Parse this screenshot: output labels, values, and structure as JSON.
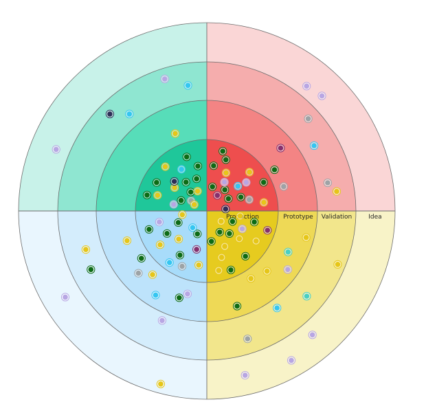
{
  "rings": [
    {
      "label": "Production"
    },
    {
      "label": "Prototype"
    },
    {
      "label": "Validation"
    },
    {
      "label": "Idea"
    }
  ],
  "quadrant_colors": {
    "top_left": [
      "#1fc79a",
      "#57ddb9",
      "#8fe6d1",
      "#c8f2e9"
    ],
    "top_right": [
      "#ee4e4e",
      "#f38484",
      "#f5adad",
      "#fad6d6"
    ],
    "bottom_left": [
      "#a8dcfa",
      "#bde3fb",
      "#d4edfc",
      "#e9f6fe"
    ],
    "bottom_right": [
      "#e6cb1f",
      "#eed956",
      "#f2e68c",
      "#f8f3c8"
    ]
  },
  "blip_colors": {
    "green": "#0d6b15",
    "yellow": "#e6c619",
    "cyan": "#35c6f1",
    "lavender": "#b8a6e3",
    "gray": "#9da3a6",
    "navy": "#2e2e57",
    "plum": "#85306e",
    "teal": "#48cfc4"
  },
  "blips": [
    {
      "q": "top_left",
      "ring": 1,
      "angle": 20,
      "dist": 0.35,
      "c": "green"
    },
    {
      "q": "top_left",
      "ring": 1,
      "angle": 35,
      "dist": 0.55,
      "c": "yellow"
    },
    {
      "q": "top_left",
      "ring": 1,
      "angle": 50,
      "dist": 0.3,
      "c": "green"
    },
    {
      "q": "top_left",
      "ring": 1,
      "angle": 60,
      "dist": 0.7,
      "c": "cyan"
    },
    {
      "q": "top_left",
      "ring": 1,
      "angle": 75,
      "dist": 0.45,
      "c": "green"
    },
    {
      "q": "top_left",
      "ring": 1,
      "angle": 15,
      "dist": 0.75,
      "c": "yellow"
    },
    {
      "q": "top_left",
      "ring": 1,
      "angle": 28,
      "dist": 0.85,
      "c": "green"
    },
    {
      "q": "top_left",
      "ring": 1,
      "angle": 42,
      "dist": 0.62,
      "c": "navy"
    },
    {
      "q": "top_left",
      "ring": 1,
      "angle": 67,
      "dist": 0.25,
      "c": "yellow"
    },
    {
      "q": "top_left",
      "ring": 1,
      "angle": 82,
      "dist": 0.65,
      "c": "green"
    },
    {
      "q": "top_left",
      "ring": 1,
      "angle": 8,
      "dist": 0.45,
      "c": "lavender"
    },
    {
      "q": "top_left",
      "ring": 1,
      "angle": 55,
      "dist": 0.48,
      "c": "green"
    },
    {
      "q": "top_left",
      "ring": 1,
      "angle": 32,
      "dist": 0.2,
      "c": "gray"
    },
    {
      "q": "top_left",
      "ring": 1,
      "angle": 12,
      "dist": 0.92,
      "c": "green"
    },
    {
      "q": "top_left",
      "ring": 1,
      "angle": 47,
      "dist": 0.9,
      "c": "yellow"
    },
    {
      "q": "top_left",
      "ring": 1,
      "angle": 72,
      "dist": 0.85,
      "c": "green"
    },
    {
      "q": "top_left",
      "ring": 1,
      "angle": 25,
      "dist": 0.12,
      "c": "yellow"
    },
    {
      "q": "top_left",
      "ring": 2,
      "angle": 70,
      "dist": 0.25,
      "c": "yellow"
    },
    {
      "q": "top_left",
      "ring": 3,
      "angle": 45,
      "dist": 0.75,
      "c": "navy"
    },
    {
      "q": "top_left",
      "ring": 3,
      "angle": 52,
      "dist": 0.3,
      "c": "cyan"
    },
    {
      "q": "top_left",
      "ring": 3,
      "angle": 75,
      "dist": 0.8,
      "c": "lavender"
    },
    {
      "q": "top_left",
      "ring": 3,
      "angle": 85,
      "dist": 0.4,
      "c": "cyan"
    },
    {
      "q": "top_left",
      "ring": 4,
      "angle": 20,
      "dist": 0.3,
      "c": "lavender"
    },
    {
      "q": "top_right",
      "ring": 1,
      "angle": 10,
      "dist": 0.3,
      "c": "green"
    },
    {
      "q": "top_right",
      "ring": 1,
      "angle": 25,
      "dist": 0.6,
      "c": "yellow"
    },
    {
      "q": "top_right",
      "ring": 1,
      "angle": 40,
      "dist": 0.35,
      "c": "green"
    },
    {
      "q": "top_right",
      "ring": 1,
      "angle": 55,
      "dist": 0.7,
      "c": "lavender"
    },
    {
      "q": "top_right",
      "ring": 1,
      "angle": 70,
      "dist": 0.5,
      "c": "green"
    },
    {
      "q": "top_right",
      "ring": 1,
      "angle": 85,
      "dist": 0.85,
      "c": "yellow"
    },
    {
      "q": "top_right",
      "ring": 1,
      "angle": 18,
      "dist": 0.8,
      "c": "green"
    },
    {
      "q": "top_right",
      "ring": 1,
      "angle": 33,
      "dist": 0.2,
      "c": "plum"
    },
    {
      "q": "top_right",
      "ring": 1,
      "angle": 48,
      "dist": 0.85,
      "c": "yellow"
    },
    {
      "q": "top_right",
      "ring": 1,
      "angle": 62,
      "dist": 0.3,
      "c": "green"
    },
    {
      "q": "top_right",
      "ring": 1,
      "angle": 78,
      "dist": 0.62,
      "c": "gray"
    },
    {
      "q": "top_right",
      "ring": 1,
      "angle": 5,
      "dist": 0.65,
      "c": "green"
    },
    {
      "q": "top_right",
      "ring": 1,
      "angle": 30,
      "dist": 0.45,
      "c": "lavender"
    },
    {
      "q": "top_right",
      "ring": 1,
      "angle": 65,
      "dist": 0.95,
      "c": "green"
    },
    {
      "q": "top_right",
      "ring": 1,
      "angle": 12,
      "dist": 0.92,
      "c": "green"
    },
    {
      "q": "top_right",
      "ring": 1,
      "angle": 52,
      "dist": 0.55,
      "c": "cyan"
    },
    {
      "q": "top_right",
      "ring": 1,
      "angle": 88,
      "dist": 0.2,
      "c": "navy"
    },
    {
      "q": "top_right",
      "ring": 2,
      "angle": 50,
      "dist": 0.7,
      "c": "plum"
    },
    {
      "q": "top_right",
      "ring": 2,
      "angle": 60,
      "dist": 0.1,
      "c": "green"
    },
    {
      "q": "top_right",
      "ring": 2,
      "angle": 75,
      "dist": 0.15,
      "c": "gray"
    },
    {
      "q": "top_right",
      "ring": 3,
      "angle": 60,
      "dist": 0.35,
      "c": "cyan"
    },
    {
      "q": "top_right",
      "ring": 3,
      "angle": 48,
      "dist": 0.75,
      "c": "gray"
    },
    {
      "q": "top_right",
      "ring": 3,
      "angle": 80,
      "dist": 0.3,
      "c": "gray"
    },
    {
      "q": "top_right",
      "ring": 3,
      "angle": 85,
      "dist": 0.55,
      "c": "yellow"
    },
    {
      "q": "top_right",
      "ring": 4,
      "angle": 45,
      "dist": 0.3,
      "c": "lavender"
    },
    {
      "q": "top_right",
      "ring": 4,
      "angle": 38,
      "dist": 0.2,
      "c": "lavender"
    },
    {
      "q": "bottom_left",
      "ring": 1,
      "angle": 20,
      "dist": 0.3,
      "c": "green"
    },
    {
      "q": "bottom_left",
      "ring": 1,
      "angle": 45,
      "dist": 0.55,
      "c": "yellow"
    },
    {
      "q": "bottom_left",
      "ring": 1,
      "angle": 70,
      "dist": 0.4,
      "c": "green"
    },
    {
      "q": "bottom_left",
      "ring": 1,
      "angle": 30,
      "dist": 0.75,
      "c": "green"
    },
    {
      "q": "bottom_left",
      "ring": 1,
      "angle": 55,
      "dist": 0.85,
      "c": "yellow"
    },
    {
      "q": "bottom_left",
      "ring": 1,
      "angle": 80,
      "dist": 0.7,
      "c": "lavender"
    },
    {
      "q": "bottom_left",
      "ring": 1,
      "angle": 12,
      "dist": 0.55,
      "c": "plum"
    },
    {
      "q": "bottom_left",
      "ring": 1,
      "angle": 40,
      "dist": 0.25,
      "c": "cyan"
    },
    {
      "q": "bottom_left",
      "ring": 1,
      "angle": 62,
      "dist": 0.65,
      "c": "green"
    },
    {
      "q": "bottom_left",
      "ring": 1,
      "angle": 35,
      "dist": 0.95,
      "c": "cyan"
    },
    {
      "q": "bottom_left",
      "ring": 1,
      "angle": 85,
      "dist": 0.3,
      "c": "yellow"
    },
    {
      "q": "bottom_left",
      "ring": 1,
      "angle": 22,
      "dist": 0.9,
      "c": "gray"
    },
    {
      "q": "bottom_left",
      "ring": 1,
      "angle": 75,
      "dist": 0.9,
      "c": "green"
    },
    {
      "q": "bottom_left",
      "ring": 1,
      "angle": 5,
      "dist": 0.8,
      "c": "yellow"
    },
    {
      "q": "bottom_left",
      "ring": 2,
      "angle": 40,
      "dist": 0.25,
      "c": "yellow"
    },
    {
      "q": "bottom_left",
      "ring": 2,
      "angle": 55,
      "dist": 0.15,
      "c": "green"
    },
    {
      "q": "bottom_left",
      "ring": 2,
      "angle": 15,
      "dist": 0.5,
      "c": "green"
    },
    {
      "q": "bottom_left",
      "ring": 2,
      "angle": 72,
      "dist": 0.3,
      "c": "yellow"
    },
    {
      "q": "bottom_left",
      "ring": 2,
      "angle": 30,
      "dist": 0.75,
      "c": "cyan"
    },
    {
      "q": "bottom_left",
      "ring": 2,
      "angle": 48,
      "dist": 0.55,
      "c": "gray"
    },
    {
      "q": "bottom_left",
      "ring": 2,
      "angle": 10,
      "dist": 0.3,
      "c": "lavender"
    },
    {
      "q": "bottom_left",
      "ring": 3,
      "angle": 65,
      "dist": 0.5,
      "c": "green"
    },
    {
      "q": "bottom_left",
      "ring": 3,
      "angle": 75,
      "dist": 0.4,
      "c": "yellow"
    },
    {
      "q": "bottom_left",
      "ring": 3,
      "angle": 20,
      "dist": 0.1,
      "c": "lavender"
    },
    {
      "q": "bottom_left",
      "ring": 4,
      "angle": 60,
      "dist": 0.4,
      "c": "lavender"
    },
    {
      "q": "bottom_left",
      "ring": 4,
      "angle": 12,
      "dist": 0.85,
      "c": "yellow"
    },
    {
      "q": "bottom_right",
      "ring": 1,
      "angle": 20,
      "dist": 0.35,
      "c": "green"
    },
    {
      "q": "bottom_right",
      "ring": 1,
      "angle": 40,
      "dist": 0.6,
      "c": "yellow"
    },
    {
      "q": "bottom_right",
      "ring": 1,
      "angle": 60,
      "dist": 0.3,
      "c": "green"
    },
    {
      "q": "bottom_right",
      "ring": 1,
      "angle": 75,
      "dist": 0.7,
      "c": "yellow"
    },
    {
      "q": "bottom_right",
      "ring": 1,
      "angle": 10,
      "dist": 0.7,
      "c": "green"
    },
    {
      "q": "bottom_right",
      "ring": 1,
      "angle": 30,
      "dist": 0.85,
      "c": "yellow"
    },
    {
      "q": "bottom_right",
      "ring": 1,
      "angle": 50,
      "dist": 0.88,
      "c": "green"
    },
    {
      "q": "bottom_right",
      "ring": 1,
      "angle": 65,
      "dist": 0.55,
      "c": "yellow"
    },
    {
      "q": "bottom_right",
      "ring": 1,
      "angle": 85,
      "dist": 0.4,
      "c": "green"
    },
    {
      "q": "bottom_right",
      "ring": 1,
      "angle": 15,
      "dist": 0.95,
      "c": "plum"
    },
    {
      "q": "bottom_right",
      "ring": 1,
      "angle": 35,
      "dist": 0.18,
      "c": "yellow"
    },
    {
      "q": "bottom_right",
      "ring": 1,
      "angle": 5,
      "dist": 0.45,
      "c": "yellow"
    },
    {
      "q": "bottom_right",
      "ring": 1,
      "angle": 25,
      "dist": 0.55,
      "c": "lavender"
    },
    {
      "q": "bottom_right",
      "ring": 1,
      "angle": 70,
      "dist": 0.95,
      "c": "green"
    },
    {
      "q": "bottom_right",
      "ring": 1,
      "angle": 45,
      "dist": 0.42,
      "c": "green"
    },
    {
      "q": "bottom_right",
      "ring": 1,
      "angle": 82,
      "dist": 0.9,
      "c": "yellow"
    },
    {
      "q": "bottom_right",
      "ring": 2,
      "angle": 25,
      "dist": 0.5,
      "c": "teal"
    },
    {
      "q": "bottom_right",
      "ring": 2,
      "angle": 58,
      "dist": 0.15,
      "c": "yellow"
    },
    {
      "q": "bottom_right",
      "ring": 2,
      "angle": 35,
      "dist": 0.8,
      "c": "lavender"
    },
    {
      "q": "bottom_right",
      "ring": 2,
      "angle": 45,
      "dist": 0.3,
      "c": "yellow"
    },
    {
      "q": "bottom_right",
      "ring": 2,
      "angle": 75,
      "dist": 0.8,
      "c": "green"
    },
    {
      "q": "bottom_right",
      "ring": 2,
      "angle": 12,
      "dist": 0.9,
      "c": "yellow"
    },
    {
      "q": "bottom_right",
      "ring": 3,
      "angle": 55,
      "dist": 0.15,
      "c": "cyan"
    },
    {
      "q": "bottom_right",
      "ring": 3,
      "angle": 40,
      "dist": 0.55,
      "c": "teal"
    },
    {
      "q": "bottom_right",
      "ring": 3,
      "angle": 75,
      "dist": 0.65,
      "c": "gray"
    },
    {
      "q": "bottom_right",
      "ring": 3,
      "angle": 20,
      "dist": 0.9,
      "c": "yellow"
    },
    {
      "q": "bottom_right",
      "ring": 4,
      "angle": 50,
      "dist": 0.3,
      "c": "lavender"
    },
    {
      "q": "bottom_right",
      "ring": 4,
      "angle": 80,
      "dist": 0.5,
      "c": "lavender"
    },
    {
      "q": "bottom_right",
      "ring": 4,
      "angle": 62,
      "dist": 0.6,
      "c": "lavender"
    }
  ]
}
